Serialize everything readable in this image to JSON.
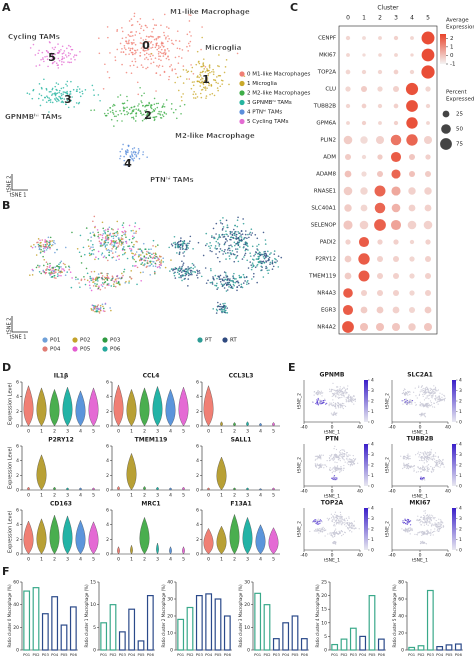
{
  "panel_labels": [
    "A",
    "B",
    "C",
    "D",
    "E",
    "F"
  ],
  "tsne_clusters": {
    "labels": [
      "M1-like Macrophage",
      "Microglia",
      "M2-like Macrophage",
      "GPNMBʰⁱ TAMs",
      "PTNʰⁱ TAMs",
      "Cycling TAMs"
    ],
    "numbers": [
      "0",
      "1",
      "2",
      "3",
      "4",
      "5"
    ],
    "legend": [
      "0 M1-like Macrophages",
      "1 Microglia",
      "2 M2-like Macrophages",
      "3 GPNMBʰⁱ TAMs",
      "4 PTNʰⁱ TAMs",
      "5 Cycling TAMs"
    ],
    "colors": [
      "#f07f74",
      "#c9a92a",
      "#3fae49",
      "#26b5a0",
      "#5b8fdc",
      "#e36bd2"
    ],
    "xlabel": "tSNE 1",
    "ylabel": "tSNE 2"
  },
  "tsne_samples": {
    "legend": [
      "P01",
      "P02",
      "P03",
      "P04",
      "P05",
      "P06"
    ],
    "colors": [
      "#6fa0d8",
      "#c3a22a",
      "#2e9a40",
      "#e07c74",
      "#e35bd0",
      "#25a89c"
    ],
    "groups": [
      "PT",
      "RT"
    ],
    "group_colors": [
      "#2d9c95",
      "#2f4a7f"
    ],
    "xlabel": "tSNE 1",
    "ylabel": "tSNE 2"
  },
  "chart_data": [
    {
      "type": "dot",
      "title": "Cluster",
      "categories": [
        "0",
        "1",
        "2",
        "3",
        "4",
        "5"
      ],
      "series": [
        {
          "name": "CENPF",
          "values": [
            10,
            8,
            8,
            10,
            8,
            90
          ],
          "expression": [
            -0.4,
            -0.5,
            -0.4,
            -0.3,
            -0.4,
            2.3
          ]
        },
        {
          "name": "MKI67",
          "values": [
            8,
            6,
            7,
            8,
            6,
            88
          ],
          "expression": [
            -0.4,
            -0.5,
            -0.4,
            -0.4,
            -0.4,
            2.3
          ]
        },
        {
          "name": "TOP2A",
          "values": [
            12,
            10,
            10,
            12,
            10,
            95
          ],
          "expression": [
            -0.4,
            -0.4,
            -0.4,
            -0.3,
            -0.4,
            2.3
          ]
        },
        {
          "name": "CLU",
          "values": [
            15,
            20,
            15,
            20,
            80,
            15
          ],
          "expression": [
            -0.4,
            -0.2,
            -0.4,
            -0.3,
            2.2,
            -0.4
          ]
        },
        {
          "name": "TUBB2B",
          "values": [
            10,
            12,
            10,
            12,
            75,
            10
          ],
          "expression": [
            -0.4,
            -0.3,
            -0.4,
            -0.3,
            2.2,
            -0.4
          ]
        },
        {
          "name": "GPM6A",
          "values": [
            8,
            10,
            8,
            10,
            70,
            8
          ],
          "expression": [
            -0.4,
            -0.3,
            -0.4,
            -0.3,
            2.2,
            -0.4
          ]
        },
        {
          "name": "PLIN2",
          "values": [
            40,
            30,
            35,
            60,
            70,
            35
          ],
          "expression": [
            -0.2,
            -0.5,
            -0.3,
            1.5,
            1.8,
            -0.3
          ]
        },
        {
          "name": "ADM",
          "values": [
            20,
            10,
            15,
            55,
            20,
            15
          ],
          "expression": [
            -0.2,
            -0.5,
            -0.2,
            2.0,
            -0.1,
            -0.3
          ]
        },
        {
          "name": "ADAM8",
          "values": [
            25,
            15,
            20,
            45,
            20,
            20
          ],
          "expression": [
            0.0,
            -0.5,
            -0.1,
            1.8,
            0.0,
            -0.2
          ]
        },
        {
          "name": "RNASE1",
          "values": [
            40,
            30,
            65,
            45,
            30,
            30
          ],
          "expression": [
            -0.2,
            -0.4,
            1.8,
            0.5,
            -0.3,
            -0.3
          ]
        },
        {
          "name": "SLC40A1",
          "values": [
            30,
            25,
            60,
            40,
            25,
            25
          ],
          "expression": [
            -0.2,
            -0.4,
            1.8,
            0.3,
            -0.3,
            -0.3
          ]
        },
        {
          "name": "SELENOP",
          "values": [
            45,
            40,
            75,
            55,
            40,
            40
          ],
          "expression": [
            -0.1,
            -0.3,
            1.9,
            0.6,
            -0.3,
            -0.3
          ]
        },
        {
          "name": "PADI2",
          "values": [
            15,
            55,
            15,
            15,
            10,
            15
          ],
          "expression": [
            -0.3,
            2.0,
            -0.3,
            -0.3,
            -0.4,
            -0.3
          ]
        },
        {
          "name": "P2RY12",
          "values": [
            25,
            70,
            20,
            20,
            15,
            20
          ],
          "expression": [
            -0.2,
            2.0,
            -0.3,
            -0.3,
            -0.4,
            -0.3
          ]
        },
        {
          "name": "TMEM119",
          "values": [
            25,
            65,
            20,
            20,
            15,
            20
          ],
          "expression": [
            -0.2,
            2.0,
            -0.3,
            -0.3,
            -0.4,
            -0.3
          ]
        },
        {
          "name": "NR4A3",
          "values": [
            50,
            20,
            20,
            20,
            15,
            20
          ],
          "expression": [
            2.0,
            -0.3,
            -0.3,
            -0.3,
            -0.4,
            -0.3
          ]
        },
        {
          "name": "EGR3",
          "values": [
            55,
            25,
            25,
            25,
            20,
            25
          ],
          "expression": [
            2.0,
            -0.2,
            -0.2,
            -0.3,
            -0.4,
            -0.2
          ]
        },
        {
          "name": "NR4A2",
          "values": [
            75,
            35,
            35,
            35,
            30,
            35
          ],
          "expression": [
            2.1,
            0.0,
            0.0,
            -0.1,
            -0.2,
            -0.1
          ]
        }
      ],
      "color_legend": {
        "title": [
          "Average",
          "Expression"
        ],
        "ticks": [
          2,
          1,
          0,
          -1
        ],
        "lim": [
          -1,
          2.5
        ],
        "colors": [
          "#f4f4f4",
          "#e8432a"
        ]
      },
      "size_legend": {
        "title": [
          "Percent",
          "Expressed"
        ],
        "values": [
          25,
          50,
          75
        ]
      }
    },
    {
      "type": "bar",
      "ylabel": "Ratio cluster 0 Macrophage (%)",
      "categories": [
        "P01",
        "P02",
        "P03",
        "P04",
        "P05",
        "P06"
      ],
      "values": [
        52,
        55,
        32,
        47,
        22,
        38
      ],
      "colors": [
        "#3aa98a",
        "#3aa98a",
        "#2b4a8a",
        "#2b4a8a",
        "#2b4a8a",
        "#2b4a8a"
      ],
      "ylim": [
        0,
        60
      ],
      "yticks": [
        0,
        20,
        40,
        60
      ]
    },
    {
      "type": "bar",
      "ylabel": "Ratio cluster 1 Macrophage (%)",
      "categories": [
        "P01",
        "P02",
        "P03",
        "P04",
        "P05",
        "P06"
      ],
      "values": [
        6,
        10,
        4,
        9,
        2,
        12
      ],
      "colors": [
        "#3aa98a",
        "#3aa98a",
        "#2b4a8a",
        "#2b4a8a",
        "#2b4a8a",
        "#2b4a8a"
      ],
      "ylim": [
        0,
        15
      ],
      "yticks": [
        0,
        5,
        10,
        15
      ]
    },
    {
      "type": "bar",
      "ylabel": "Ratio cluster 2 Macrophage (%)",
      "categories": [
        "P01",
        "P02",
        "P03",
        "P04",
        "P05",
        "P06"
      ],
      "values": [
        18,
        25,
        32,
        33,
        30,
        20
      ],
      "colors": [
        "#3aa98a",
        "#3aa98a",
        "#2b4a8a",
        "#2b4a8a",
        "#2b4a8a",
        "#2b4a8a"
      ],
      "ylim": [
        0,
        40
      ],
      "yticks": [
        0,
        10,
        20,
        30,
        40
      ]
    },
    {
      "type": "bar",
      "ylabel": "Ratio cluster 3 Macrophage (%)",
      "categories": [
        "P01",
        "P02",
        "P03",
        "P04",
        "P05",
        "P06"
      ],
      "values": [
        25,
        20,
        5,
        12,
        15,
        5
      ],
      "colors": [
        "#3aa98a",
        "#3aa98a",
        "#2b4a8a",
        "#2b4a8a",
        "#2b4a8a",
        "#2b4a8a"
      ],
      "ylim": [
        0,
        30
      ],
      "yticks": [
        0,
        10,
        20,
        30
      ]
    },
    {
      "type": "bar",
      "ylabel": "Ratio cluster 4 Macrophage (%)",
      "categories": [
        "P01",
        "P02",
        "P03",
        "P04",
        "P05",
        "P06"
      ],
      "values": [
        2,
        4,
        8,
        5,
        20,
        4
      ],
      "colors": [
        "#3aa98a",
        "#3aa98a",
        "#3aa98a",
        "#2b4a8a",
        "#3aa98a",
        "#2b4a8a"
      ],
      "ylim": [
        0,
        25
      ],
      "yticks": [
        0,
        5,
        10,
        15,
        20,
        25
      ]
    },
    {
      "type": "bar",
      "ylabel": "Ratio cluster 5 Macrophage (%)",
      "categories": [
        "P01",
        "P02",
        "P03",
        "P04",
        "P05",
        "P06"
      ],
      "values": [
        3,
        5,
        70,
        4,
        6,
        7
      ],
      "colors": [
        "#3aa98a",
        "#3aa98a",
        "#3aa98a",
        "#2b4a8a",
        "#2b4a8a",
        "#2b4a8a"
      ],
      "ylim": [
        0,
        80
      ],
      "yticks": [
        0,
        20,
        40,
        60,
        80
      ]
    }
  ],
  "violins": {
    "genes": [
      "IL1β",
      "CCL4",
      "CCL3L3",
      "P2RY12",
      "TMEM119",
      "SALL1",
      "CD163",
      "MRC1",
      "F13A1"
    ],
    "ylabel": "Expression Level",
    "clusters": [
      "0",
      "1",
      "2",
      "3",
      "4",
      "5"
    ],
    "colors": [
      "#f07f74",
      "#b8a035",
      "#4aae4f",
      "#23b3a6",
      "#5b95db",
      "#e46ad4"
    ],
    "ylim": [
      0,
      6
    ],
    "yticks": [
      0,
      2,
      4,
      6
    ],
    "max": [
      [
        5.5,
        5.2,
        5.0,
        5.3,
        4.8,
        5.2
      ],
      [
        5.6,
        5.0,
        5.2,
        5.4,
        5.0,
        5.3
      ],
      [
        5.5,
        0.6,
        0.5,
        0.6,
        0.4,
        0.5
      ],
      [
        0.4,
        4.8,
        0.4,
        0.3,
        0.3,
        0.3
      ],
      [
        0.5,
        5.0,
        0.5,
        0.4,
        0.3,
        0.4
      ],
      [
        0.3,
        4.5,
        0.3,
        0.3,
        0.2,
        0.3
      ],
      [
        4.5,
        4.8,
        5.3,
        5.2,
        4.6,
        4.4
      ],
      [
        1.0,
        1.2,
        5.0,
        1.5,
        1.0,
        1.0
      ],
      [
        3.5,
        3.8,
        5.4,
        5.0,
        4.0,
        3.6
      ]
    ]
  },
  "features": {
    "genes": [
      "GPNMB",
      "SLC2A1",
      "PTN",
      "TUBB2B",
      "TOP2A",
      "MKI67"
    ],
    "xlabel": "tSNE_1",
    "ylabel": "tSNE_2",
    "xticks": [
      -40,
      0,
      40
    ],
    "cticks": [
      0,
      1,
      2,
      3,
      4
    ]
  }
}
